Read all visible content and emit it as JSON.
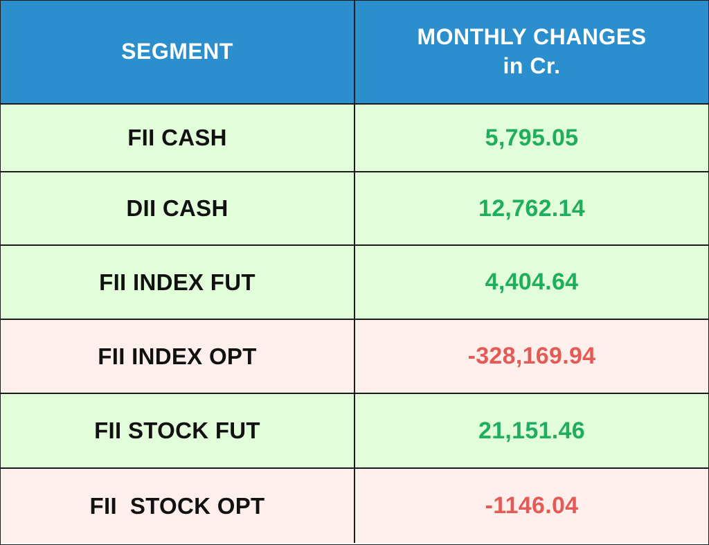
{
  "table": {
    "headers": {
      "segment": "SEGMENT",
      "monthly_line1": "MONTHLY CHANGES",
      "monthly_line2": "in Cr."
    },
    "rows": [
      {
        "segment": "FII CASH",
        "value": "5,795.05",
        "sign": "positive"
      },
      {
        "segment": "DII CASH",
        "value": "12,762.14",
        "sign": "positive"
      },
      {
        "segment": "FII INDEX FUT",
        "value": "4,404.64",
        "sign": "positive"
      },
      {
        "segment": "FII INDEX OPT",
        "value": "-328,169.94",
        "sign": "negative"
      },
      {
        "segment": "FII STOCK FUT",
        "value": "21,151.46",
        "sign": "positive"
      },
      {
        "segment": "FII  STOCK OPT",
        "value": "-1146.04",
        "sign": "negative"
      }
    ]
  },
  "colors": {
    "header_bg": "#2b8fcd",
    "positive_row_bg": "#e2fdd9",
    "negative_row_bg": "#fdefec",
    "positive_text": "#1fae5d",
    "negative_text": "#e45a55"
  }
}
